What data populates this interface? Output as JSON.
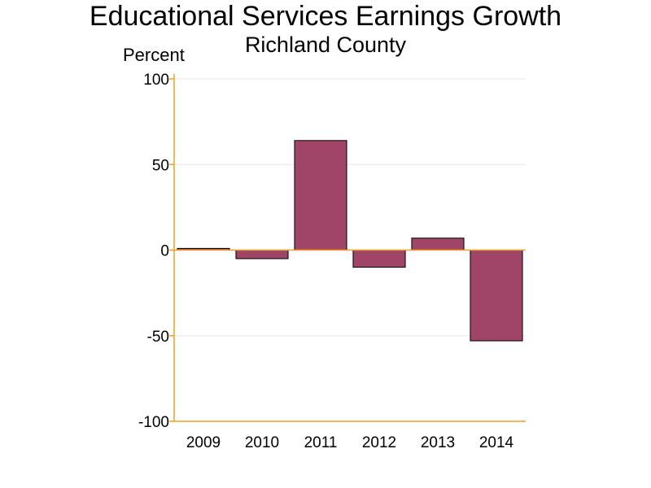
{
  "chart_data": {
    "type": "bar",
    "title": "Educational Services Earnings Growth",
    "subtitle": "Richland County",
    "ylabel": "Percent",
    "xlabel": "",
    "categories": [
      "2009",
      "2010",
      "2011",
      "2012",
      "2013",
      "2014"
    ],
    "values": [
      1,
      -5,
      64,
      -10,
      7,
      -53
    ],
    "ylim": [
      -100,
      100
    ],
    "yticks": [
      100,
      50,
      0,
      -50,
      -100
    ],
    "ytick_labels": [
      "100",
      "50",
      "0",
      "-50",
      "-100"
    ],
    "grid": true,
    "legend": "none",
    "colors": {
      "bar_fill": "#a04468",
      "bar_stroke": "#000000",
      "axis": "#f0a020",
      "grid": "#e6e6e6"
    }
  }
}
